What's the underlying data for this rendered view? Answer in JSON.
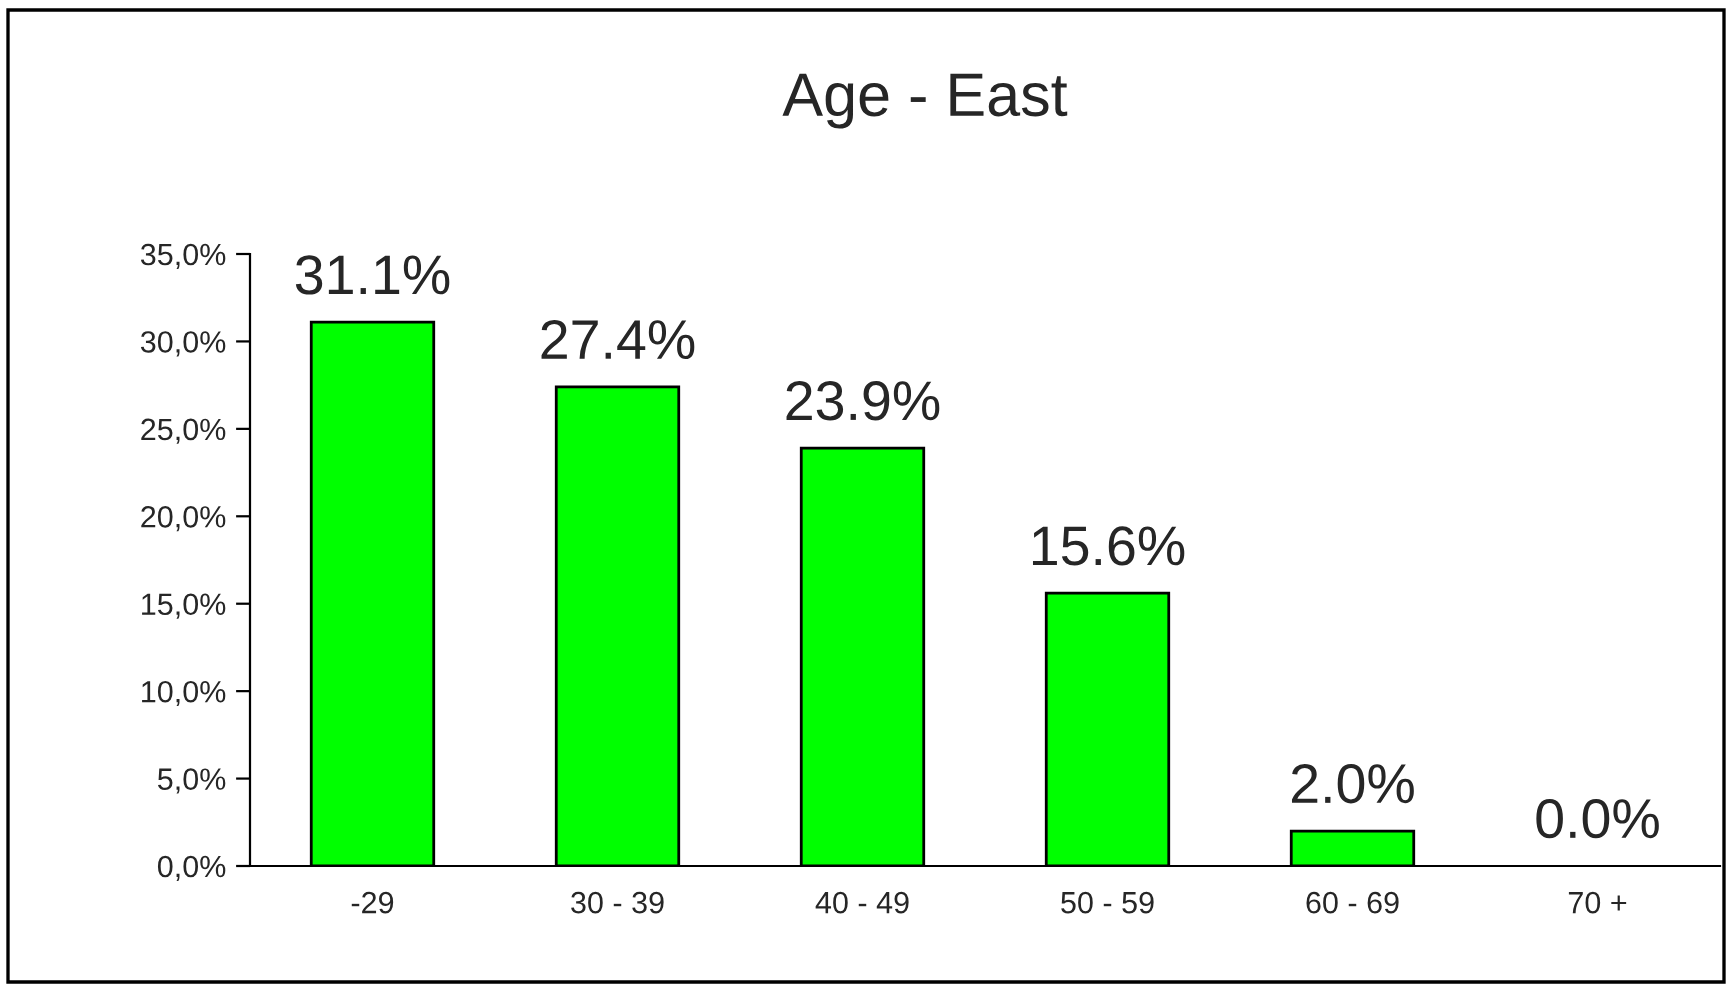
{
  "chart_data": {
    "type": "bar",
    "title": "Age - East",
    "categories": [
      "-29",
      "30 - 39",
      "40 - 49",
      "50 - 59",
      "60 - 69",
      "70 +"
    ],
    "values": [
      31.1,
      27.4,
      23.9,
      15.6,
      2.0,
      0.0
    ],
    "value_labels": [
      "31.1%",
      "27.4%",
      "23.9%",
      "15.6%",
      "2.0%",
      "0.0%"
    ],
    "color": "#00ff00",
    "ylim": [
      0,
      35
    ],
    "yticks": [
      {
        "value": 0,
        "label": "0,0%"
      },
      {
        "value": 5,
        "label": "5,0%"
      },
      {
        "value": 10,
        "label": "10,0%"
      },
      {
        "value": 15,
        "label": "15,0%"
      },
      {
        "value": 20,
        "label": "20,0%"
      },
      {
        "value": 25,
        "label": "25,0%"
      },
      {
        "value": 30,
        "label": "30,0%"
      },
      {
        "value": 35,
        "label": "35,0%"
      }
    ],
    "grid": false
  }
}
